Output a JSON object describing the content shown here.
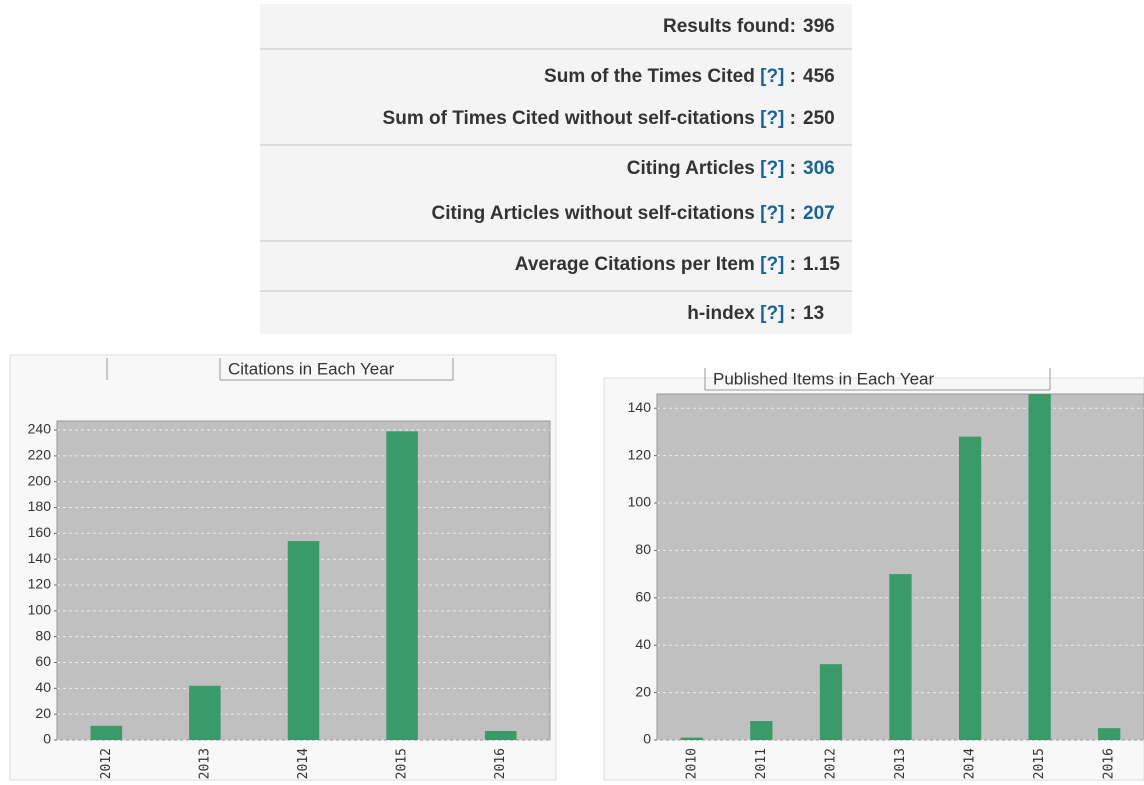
{
  "stats": {
    "rows": [
      {
        "label": "Results found:",
        "value": 396
      },
      {
        "label": "Sum of the Times Cited",
        "help": "[?]",
        "sep": ":",
        "value": 456
      },
      {
        "label": "Sum of Times Cited without self-citations",
        "help": "[?]",
        "sep": ":",
        "value": 250
      },
      {
        "label": "Citing Articles",
        "help": "[?]",
        "sep": ":",
        "value": 306,
        "color": "#1a6496"
      },
      {
        "label": "Citing Articles without self-citations",
        "help": "[?]",
        "sep": ":",
        "value": 207,
        "color": "#1a6496"
      },
      {
        "label": "Average Citations per Item",
        "help": "[?]",
        "sep": ":",
        "value": 1.15
      },
      {
        "label": "h-index",
        "help": "[?]",
        "sep": ":",
        "value": 13
      }
    ]
  },
  "chart_data": [
    {
      "type": "bar",
      "title": "Citations in Each Year",
      "categories": [
        "2012",
        "2013",
        "2014",
        "2015",
        "2016"
      ],
      "values": [
        11,
        42,
        154,
        239,
        7
      ],
      "color": "#3a9a6a",
      "ylim": [
        0,
        247
      ],
      "yticks": [
        0,
        20,
        40,
        60,
        80,
        100,
        120,
        140,
        160,
        180,
        200,
        220,
        240
      ],
      "grid": true
    },
    {
      "type": "bar",
      "title": "Published Items in Each Year",
      "categories": [
        "2010",
        "2011",
        "2012",
        "2013",
        "2014",
        "2015",
        "2016"
      ],
      "values": [
        1,
        8,
        32,
        70,
        128,
        146,
        5
      ],
      "color": "#3a9a6a",
      "ylim": [
        0,
        146
      ],
      "yticks": [
        0,
        20,
        40,
        60,
        80,
        100,
        120,
        140
      ],
      "grid": true
    }
  ]
}
